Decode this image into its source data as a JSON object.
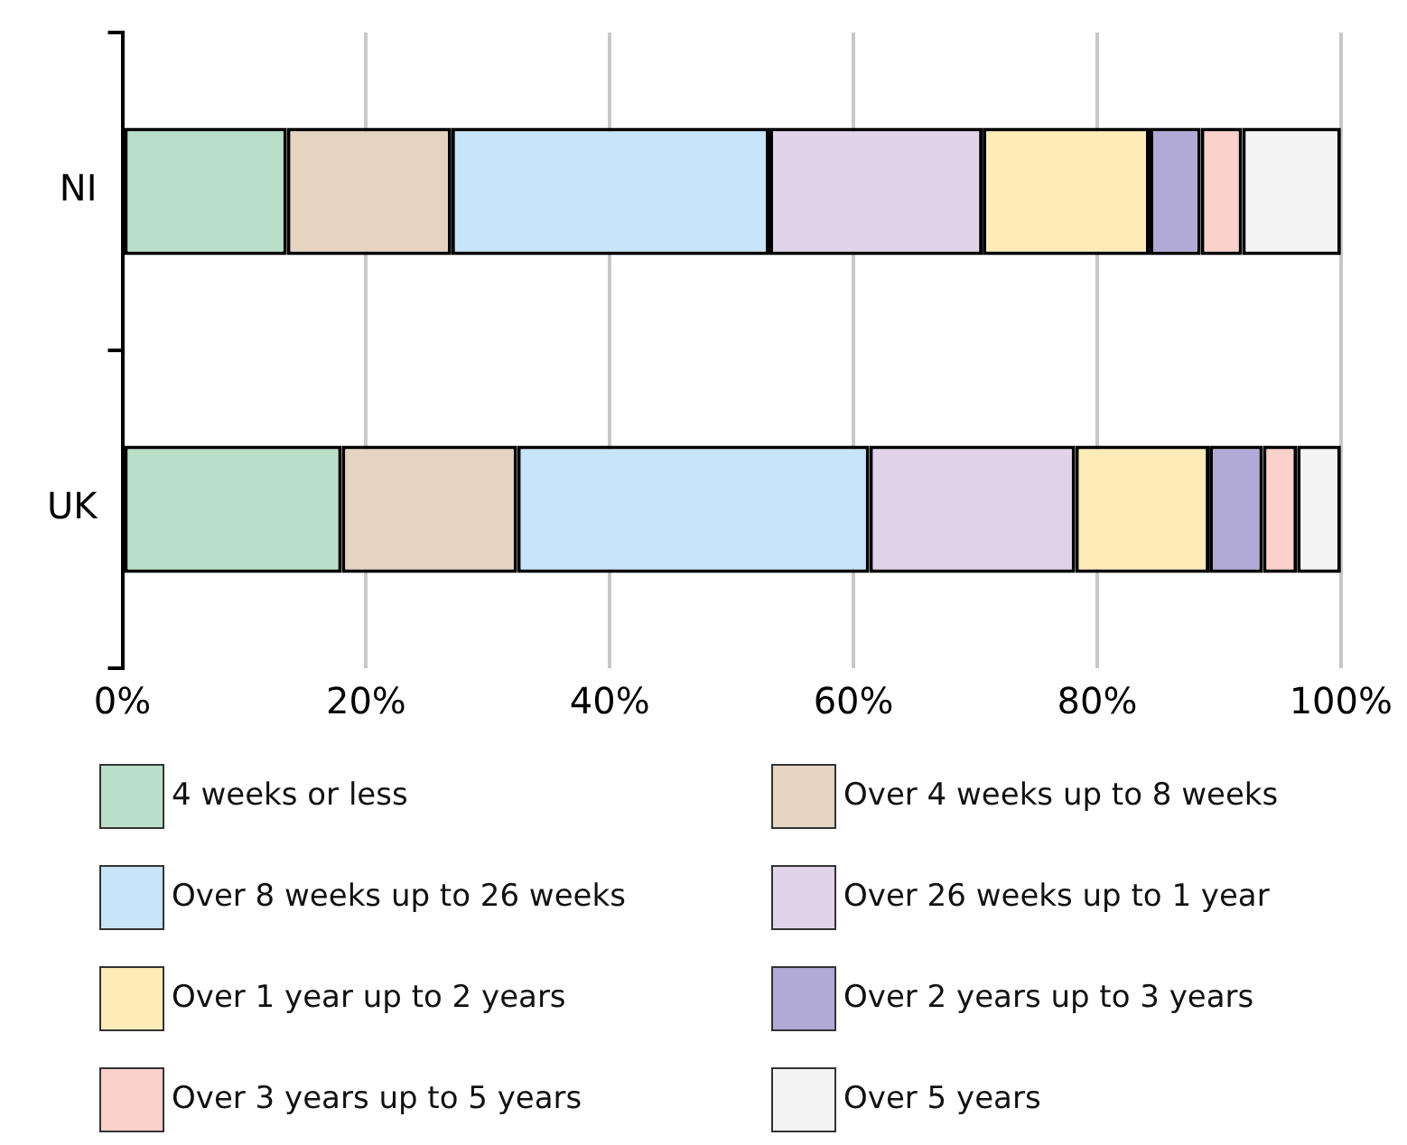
{
  "chart_data": {
    "type": "bar",
    "orientation": "horizontal",
    "stacked": true,
    "categories": [
      "NI",
      "UK"
    ],
    "series": [
      {
        "name": "4 weeks or less",
        "color": "#b9dfc9",
        "values": [
          13.5,
          18.0
        ]
      },
      {
        "name": "Over 4 weeks up to 8 weeks",
        "color": "#e6d4c3",
        "values": [
          13.5,
          14.4
        ]
      },
      {
        "name": "Over 8 weeks up to 26 weeks",
        "color": "#c8e4f8",
        "values": [
          26.1,
          28.9
        ]
      },
      {
        "name": "Over 26 weeks up to 1 year",
        "color": "#e3d3ea",
        "values": [
          17.5,
          16.9
        ]
      },
      {
        "name": "Over 1 year up to 2 years",
        "color": "#fdebb8",
        "values": [
          13.7,
          11.0
        ]
      },
      {
        "name": "Over 2 years up to 3 years",
        "color": "#b1a9d6",
        "values": [
          4.2,
          4.4
        ]
      },
      {
        "name": "Over 3 years up to 5 years",
        "color": "#f9d0ca",
        "values": [
          3.4,
          2.8
        ]
      },
      {
        "name": "Over 5 years",
        "color": "#f4f4f4",
        "values": [
          8.1,
          3.6
        ]
      }
    ],
    "xlim": [
      0,
      100
    ],
    "xticks": [
      {
        "value": 0,
        "label": "0%"
      },
      {
        "value": 20,
        "label": "20%"
      },
      {
        "value": 40,
        "label": "40%"
      },
      {
        "value": 60,
        "label": "60%"
      },
      {
        "value": 80,
        "label": "80%"
      },
      {
        "value": 100,
        "label": "100%"
      }
    ],
    "grid": "x",
    "legend": "bottom"
  }
}
